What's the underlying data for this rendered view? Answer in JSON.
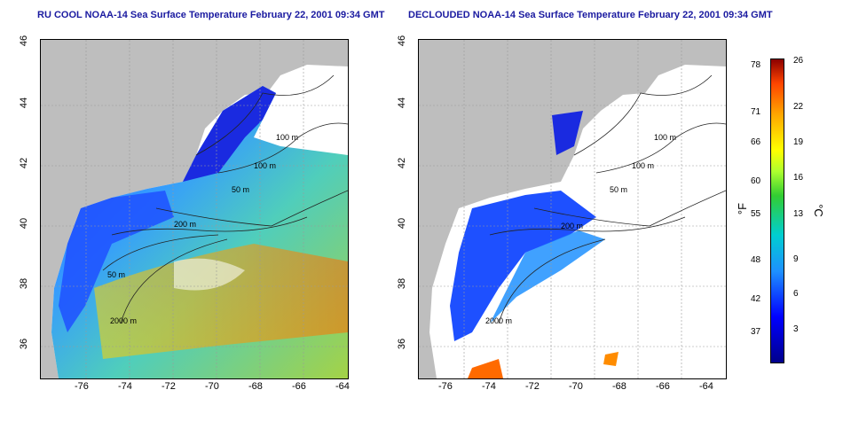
{
  "left_map": {
    "title": "RU COOL NOAA-14 Sea Surface Temperature February 22, 2001 09:34 GMT",
    "contours": [
      "100 m",
      "100 m",
      "50 m",
      "200 m",
      "50 m",
      "2000 m"
    ]
  },
  "right_map": {
    "title": "DECLOUDED NOAA-14 Sea Surface Temperature February 22, 2001 09:34 GMT",
    "contours": [
      "100 m",
      "100 m",
      "50 m",
      "200 m",
      "2000 m"
    ]
  },
  "axes": {
    "lon_ticks": [
      "-76",
      "-74",
      "-72",
      "-70",
      "-68",
      "-66",
      "-64"
    ],
    "lat_ticks": [
      "46",
      "44",
      "42",
      "40",
      "38",
      "36"
    ]
  },
  "colorbar": {
    "fahrenheit_ticks": [
      "78",
      "71",
      "66",
      "60",
      "55",
      "48",
      "42",
      "37"
    ],
    "celsius_ticks": [
      "26",
      "22",
      "19",
      "16",
      "13",
      "9",
      "6",
      "3"
    ],
    "fahrenheit_unit": "°F",
    "celsius_unit": "°C",
    "colors": [
      "#00008b",
      "#0000ff",
      "#1e90ff",
      "#00ced1",
      "#32cd32",
      "#ffff00",
      "#ffa500",
      "#ff4500",
      "#8b0000"
    ]
  }
}
